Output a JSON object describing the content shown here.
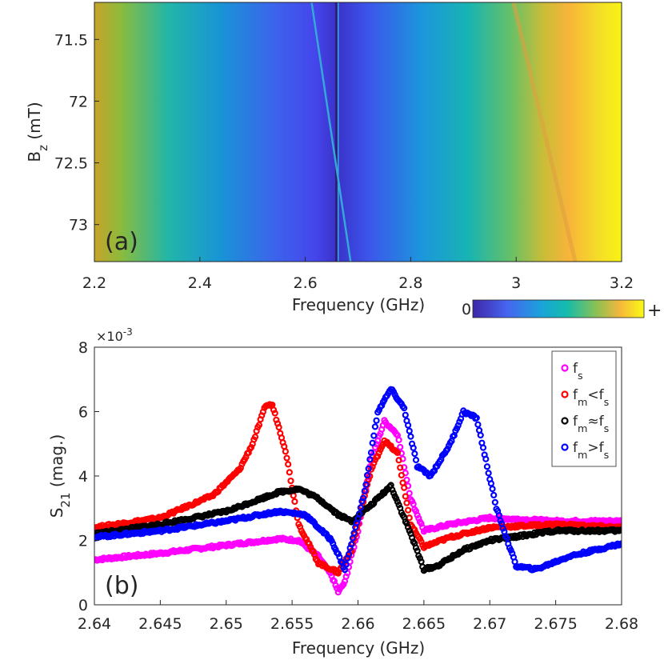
{
  "chart_data": [
    {
      "type": "heatmap",
      "panel_label": "(a)",
      "xlabel": "Frequency (GHz)",
      "ylabel": "B_z (mT)",
      "xlim": [
        2.2,
        3.2
      ],
      "ylim": [
        71.2,
        73.3
      ],
      "y_reversed": true,
      "xticks": [
        2.2,
        2.4,
        2.6,
        2.8,
        3,
        3.2
      ],
      "xtick_labels": [
        "2.2",
        "2.4",
        "2.6",
        "2.8",
        "3",
        "3.2"
      ],
      "yticks": [
        71.5,
        72,
        72.5,
        73
      ],
      "ytick_labels": [
        "71.5",
        "72",
        "72.5",
        "73"
      ],
      "colormap": "parula",
      "colorbar": {
        "min_label": "0",
        "max_label": "+"
      },
      "features": [
        {
          "name": "resonance line (vertical)",
          "x": 2.661
        },
        {
          "name": "tilted mode",
          "points": [
            [
              2.612,
              71.2
            ],
            [
              2.686,
              73.3
            ]
          ]
        },
        {
          "name": "faint tilted mode",
          "points": [
            [
              2.995,
              71.2
            ],
            [
              3.112,
              73.3
            ]
          ]
        }
      ]
    },
    {
      "type": "scatter",
      "panel_label": "(b)",
      "xlabel": "Frequency (GHz)",
      "ylabel": "S_21 (mag.)",
      "xlim": [
        2.64,
        2.68
      ],
      "ylim": [
        0,
        8
      ],
      "y_exponent": "×10^-3",
      "xticks": [
        2.64,
        2.645,
        2.65,
        2.655,
        2.66,
        2.665,
        2.67,
        2.675,
        2.68
      ],
      "xtick_labels": [
        "2.64",
        "2.645",
        "2.65",
        "2.655",
        "2.66",
        "2.665",
        "2.67",
        "2.675",
        "2.68"
      ],
      "yticks": [
        0,
        2,
        4,
        6,
        8
      ],
      "ytick_labels": [
        "0",
        "2",
        "4",
        "6",
        "8"
      ],
      "legend_position": "top-right",
      "series": [
        {
          "name": "f_s",
          "color": "#ff00ff",
          "x": [
            2.64,
            2.645,
            2.65,
            2.654,
            2.6555,
            2.657,
            2.658,
            2.6585,
            2.659,
            2.66,
            2.661,
            2.662,
            2.663,
            2.664,
            2.665,
            2.667,
            2.67,
            2.675,
            2.68
          ],
          "y": [
            1.4,
            1.6,
            1.85,
            2.05,
            2.0,
            1.5,
            0.9,
            0.4,
            0.7,
            2.3,
            4.5,
            5.7,
            5.3,
            3.3,
            2.3,
            2.5,
            2.7,
            2.6,
            2.6
          ]
        },
        {
          "name": "f_m<f_s",
          "color": "#ff0000",
          "x": [
            2.64,
            2.645,
            2.649,
            2.651,
            2.652,
            2.653,
            2.6535,
            2.6545,
            2.6555,
            2.657,
            2.6585,
            2.6595,
            2.661,
            2.662,
            2.663,
            2.664,
            2.665,
            2.667,
            2.67,
            2.675,
            2.68
          ],
          "y": [
            2.4,
            2.7,
            3.4,
            4.2,
            5.0,
            6.2,
            6.2,
            4.8,
            2.5,
            1.3,
            1.0,
            1.7,
            4.2,
            5.1,
            4.7,
            2.5,
            1.8,
            2.1,
            2.4,
            2.5,
            2.4
          ]
        },
        {
          "name": "f_m≈f_s",
          "color": "#000000",
          "x": [
            2.64,
            2.645,
            2.65,
            2.654,
            2.6555,
            2.657,
            2.6585,
            2.6595,
            2.661,
            2.6625,
            2.664,
            2.665,
            2.666,
            2.668,
            2.67,
            2.675,
            2.68
          ],
          "y": [
            2.2,
            2.5,
            2.9,
            3.5,
            3.6,
            3.3,
            2.8,
            2.6,
            3.1,
            3.7,
            2.2,
            1.1,
            1.2,
            1.7,
            2.0,
            2.3,
            2.3
          ]
        },
        {
          "name": "f_m>f_s",
          "color": "#0000ff",
          "x": [
            2.64,
            2.645,
            2.65,
            2.654,
            2.656,
            2.658,
            2.659,
            2.6605,
            2.6615,
            2.6625,
            2.6635,
            2.6645,
            2.6655,
            2.667,
            2.668,
            2.669,
            2.6705,
            2.672,
            2.6735,
            2.676,
            2.68
          ],
          "y": [
            2.1,
            2.3,
            2.6,
            2.9,
            2.8,
            2.0,
            1.1,
            3.5,
            6.0,
            6.7,
            6.1,
            4.3,
            4.0,
            5.0,
            6.0,
            5.8,
            3.0,
            1.2,
            1.1,
            1.5,
            1.9
          ]
        }
      ]
    }
  ]
}
